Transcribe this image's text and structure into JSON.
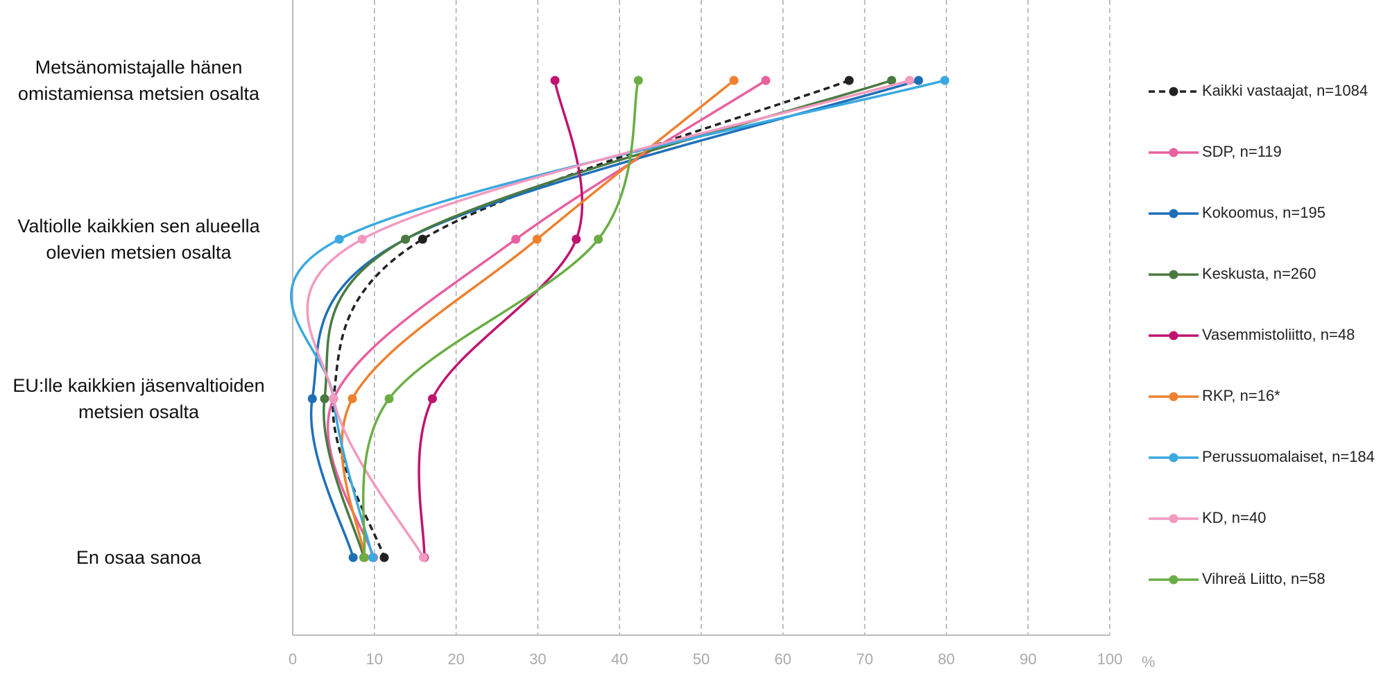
{
  "chart_data": {
    "type": "line",
    "orientation": "horizontal",
    "smooth": true,
    "categories": [
      "Metsänomistajalle hänen omistamiensa metsien osalta",
      "Valtiolle kaikkien sen alueella olevien metsien osalta",
      "EU:lle kaikkien jäsenvaltioiden metsien osalta",
      "En osaa sanoa"
    ],
    "xlim": [
      0,
      100
    ],
    "xticks": [
      0,
      10,
      20,
      30,
      40,
      50,
      60,
      70,
      80,
      90,
      100
    ],
    "x_unit": "%",
    "grid": true,
    "series": [
      {
        "name": "Kaikki vastaajat, n=1084",
        "color": "#222222",
        "dashed": true,
        "values": [
          68.1,
          15.9,
          5.0,
          11.2
        ]
      },
      {
        "name": "SDP, n=119",
        "color": "#e8609f",
        "values": [
          57.9,
          27.3,
          5.0,
          9.9
        ]
      },
      {
        "name": "Kokoomus, n=195",
        "color": "#1f6fb8",
        "values": [
          76.6,
          13.8,
          2.4,
          7.4
        ]
      },
      {
        "name": "Keskusta, n=260",
        "color": "#4a7a41",
        "values": [
          73.3,
          13.8,
          3.9,
          8.7
        ]
      },
      {
        "name": "Vasemmistoliitto, n=48",
        "color": "#c0136f",
        "values": [
          32.1,
          34.7,
          17.1,
          16.1
        ]
      },
      {
        "name": "RKP, n=16*",
        "color": "#ee8130",
        "values": [
          54.0,
          29.9,
          7.3,
          8.8
        ]
      },
      {
        "name": "Perussuomalaiset, n=184",
        "color": "#3aa9e0",
        "values": [
          79.8,
          5.7,
          5.0,
          9.8
        ]
      },
      {
        "name": "KD, n=40",
        "color": "#f29ac0",
        "values": [
          75.5,
          8.5,
          5.0,
          16.0
        ]
      },
      {
        "name": "Vihreä Liitto, n=58",
        "color": "#6aad45",
        "values": [
          42.3,
          37.4,
          11.8,
          8.7
        ]
      }
    ]
  }
}
